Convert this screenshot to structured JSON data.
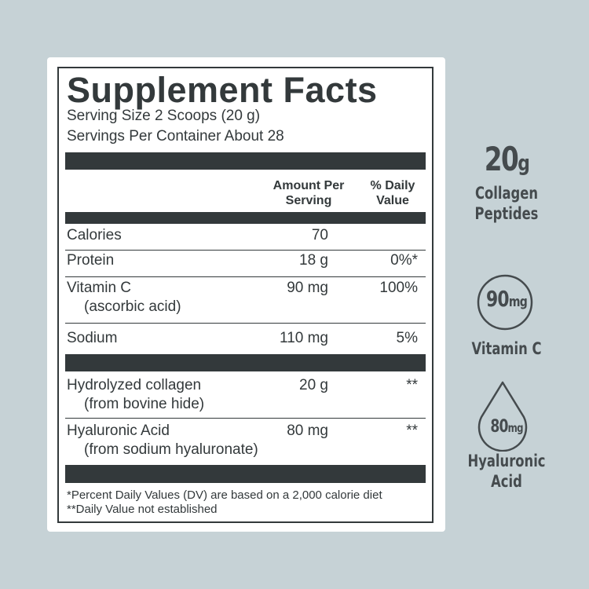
{
  "label": {
    "title": "Supplement Facts",
    "serving_size": "Serving Size 2 Scoops (20 g)",
    "servings_per_container": "Servings Per Container About 28",
    "col_amount": [
      "Amount Per",
      "Serving"
    ],
    "col_dv": [
      "% Daily",
      "Value"
    ],
    "rows": [
      {
        "name": "Calories",
        "sub": "",
        "amount": "70",
        "dv": ""
      },
      {
        "name": "Protein",
        "sub": "",
        "amount": "18 g",
        "dv": "0%*"
      },
      {
        "name": "Vitamin C",
        "sub": "(ascorbic acid)",
        "amount": "90 mg",
        "dv": "100%"
      },
      {
        "name": "Sodium",
        "sub": "",
        "amount": "110 mg",
        "dv": "5%"
      },
      {
        "name": "Hydrolyzed collagen",
        "sub": "(from bovine hide)",
        "amount": "20 g",
        "dv": "**"
      },
      {
        "name": "Hyaluronic Acid",
        "sub": "(from sodium hyaluronate)",
        "amount": "80 mg",
        "dv": "**"
      }
    ],
    "footnotes": [
      "*Percent Daily Values (DV) are based on a 2,000 calorie diet",
      "**Daily Value not established"
    ]
  },
  "highlights": [
    {
      "value": "20",
      "unit": "g",
      "label": [
        "Collagen",
        "Peptides"
      ],
      "icon": "none"
    },
    {
      "value": "90",
      "unit": "mg",
      "label": [
        "Vitamin C"
      ],
      "icon": "circle-icon"
    },
    {
      "value": "80",
      "unit": "mg",
      "label": [
        "Hyaluronic",
        "Acid"
      ],
      "icon": "droplet-icon"
    }
  ],
  "colors": {
    "background": "#c6d2d6",
    "ink": "#33393b",
    "panel": "#ffffff"
  }
}
